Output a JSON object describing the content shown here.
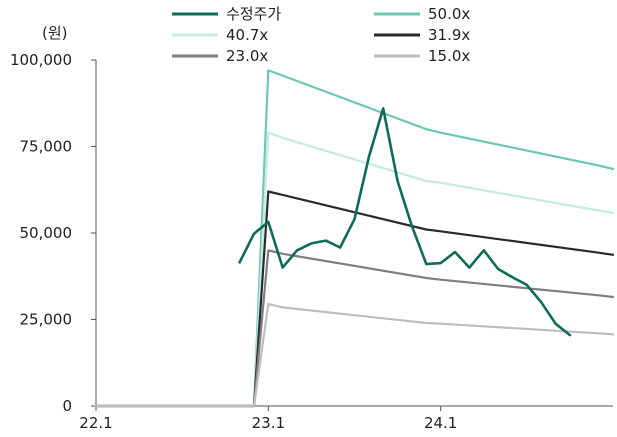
{
  "chart_data": {
    "type": "line",
    "unit_label": "(원)",
    "y_ticks": [
      "100,000",
      "75,000",
      "50,000",
      "25,000",
      "0"
    ],
    "y_tick_values": [
      100000,
      75000,
      50000,
      25000,
      0
    ],
    "x_ticks": [
      "22.1",
      "23.1",
      "24.1"
    ],
    "x_tick_values": [
      "2022-01",
      "2023-01",
      "2024-01"
    ],
    "xlim": [
      "2022-01",
      "2025-01"
    ],
    "ylim": [
      0,
      100000
    ],
    "legend_position": "top",
    "series": [
      {
        "name": "수정주가",
        "color": "#0e6b5a",
        "width": 2.6,
        "x": [
          "2022-11",
          "2022-12",
          "2023-01",
          "2023-02",
          "2023-03",
          "2023-04",
          "2023-05",
          "2023-06",
          "2023-07",
          "2023-08",
          "2023-09",
          "2023-10",
          "2023-11",
          "2023-12",
          "2024-01",
          "2024-02",
          "2024-03",
          "2024-04",
          "2024-05",
          "2024-06",
          "2024-07",
          "2024-08",
          "2024-09",
          "2024-10"
        ],
        "values": [
          41500,
          49800,
          53200,
          40000,
          45000,
          47000,
          47800,
          45800,
          54000,
          72000,
          86000,
          65000,
          52000,
          41000,
          41300,
          44500,
          40000,
          45000,
          39600,
          37200,
          35000,
          30000,
          23800,
          20500
        ]
      },
      {
        "name": "50.0x",
        "color": "#6dc7b5",
        "width": 2.2,
        "x": [
          "2022-01",
          "2022-12",
          "2023-01",
          "2023-02",
          "2023-12",
          "2024-01",
          "2024-12",
          "2025-01"
        ],
        "values": [
          0,
          0,
          97000,
          95500,
          80000,
          79000,
          69500,
          68500
        ]
      },
      {
        "name": "40.7x",
        "color": "#c5ebe3",
        "width": 2.2,
        "x": [
          "2022-01",
          "2022-12",
          "2023-01",
          "2023-02",
          "2023-12",
          "2024-01",
          "2024-12",
          "2025-01"
        ],
        "values": [
          0,
          0,
          79000,
          77500,
          65000,
          64500,
          56500,
          55800
        ]
      },
      {
        "name": "31.9x",
        "color": "#2a2a2a",
        "width": 2.2,
        "x": [
          "2022-01",
          "2022-12",
          "2023-01",
          "2023-02",
          "2023-12",
          "2024-01",
          "2024-12",
          "2025-01"
        ],
        "values": [
          0,
          0,
          62000,
          61000,
          51000,
          50500,
          44300,
          43700
        ]
      },
      {
        "name": "23.0x",
        "color": "#7f7f7f",
        "width": 2.2,
        "x": [
          "2022-01",
          "2022-12",
          "2023-01",
          "2023-02",
          "2023-12",
          "2024-01",
          "2024-12",
          "2025-01"
        ],
        "values": [
          0,
          0,
          45000,
          44000,
          37000,
          36500,
          32000,
          31500
        ]
      },
      {
        "name": "15.0x",
        "color": "#bdbdbd",
        "width": 2.2,
        "x": [
          "2022-01",
          "2022-12",
          "2023-01",
          "2023-02",
          "2023-12",
          "2024-01",
          "2024-12",
          "2025-01"
        ],
        "values": [
          0,
          0,
          29500,
          28500,
          24000,
          23800,
          21000,
          20700
        ]
      }
    ]
  }
}
